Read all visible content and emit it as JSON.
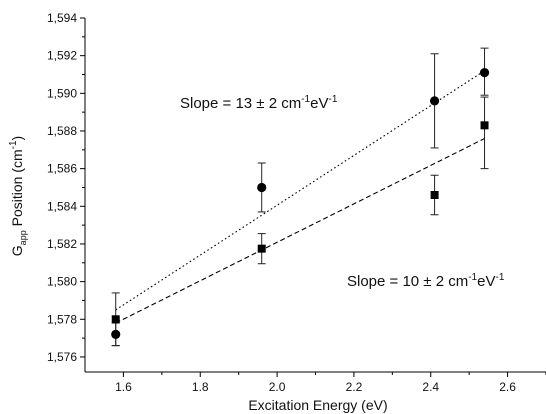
{
  "chart_data": {
    "type": "scatter",
    "xlabel": "Excitation Energy (eV)",
    "ylabel": {
      "main": "G",
      "sub": "app",
      "rest": " Position (cm",
      "sup": "-1",
      "close": ")"
    },
    "xlim": [
      1.5,
      2.7
    ],
    "ylim": [
      1575.2,
      1594
    ],
    "x_ticks": [
      1.6,
      1.8,
      2.0,
      2.2,
      2.4,
      2.6
    ],
    "x_tick_labels": [
      "1.6",
      "1.8",
      "2.0",
      "2.2",
      "2.4",
      "2.6"
    ],
    "y_ticks": [
      1576,
      1578,
      1580,
      1582,
      1584,
      1586,
      1588,
      1590,
      1592,
      1594
    ],
    "y_tick_labels": [
      "1,576",
      "1,578",
      "1,580",
      "1,582",
      "1,584",
      "1,586",
      "1,588",
      "1,590",
      "1,592",
      "1,594"
    ],
    "grid": false,
    "series": [
      {
        "marker": "circle",
        "fit_line": "dotted",
        "x": [
          1.58,
          1.96,
          2.41,
          2.54
        ],
        "y": [
          1577.2,
          1585.0,
          1589.6,
          1591.1
        ],
        "err_low": [
          0.6,
          1.3,
          2.5,
          1.2
        ],
        "err_high": [
          0.6,
          1.3,
          2.5,
          1.3
        ],
        "fit": {
          "x": [
            1.58,
            2.54
          ],
          "y": [
            1578.5,
            1591.2
          ]
        }
      },
      {
        "marker": "square",
        "fit_line": "dashed",
        "x": [
          1.58,
          1.96,
          2.41,
          2.54
        ],
        "y": [
          1578.0,
          1581.75,
          1584.6,
          1588.3
        ],
        "err_low": [
          1.4,
          0.8,
          1.05,
          2.3
        ],
        "err_high": [
          1.4,
          0.8,
          1.05,
          1.5
        ],
        "fit": {
          "x": [
            1.58,
            2.54
          ],
          "y": [
            1577.8,
            1587.6
          ]
        }
      }
    ],
    "annotations": [
      {
        "id": "slope-upper",
        "text": "Slope = 13 ± 2 cm",
        "sup1": "-1",
        "mid": "eV",
        "sup2": "-1"
      },
      {
        "id": "slope-lower",
        "text": "Slope = 10 ± 2 cm",
        "sup1": "-1",
        "mid": "eV",
        "sup2": "-1"
      }
    ]
  }
}
